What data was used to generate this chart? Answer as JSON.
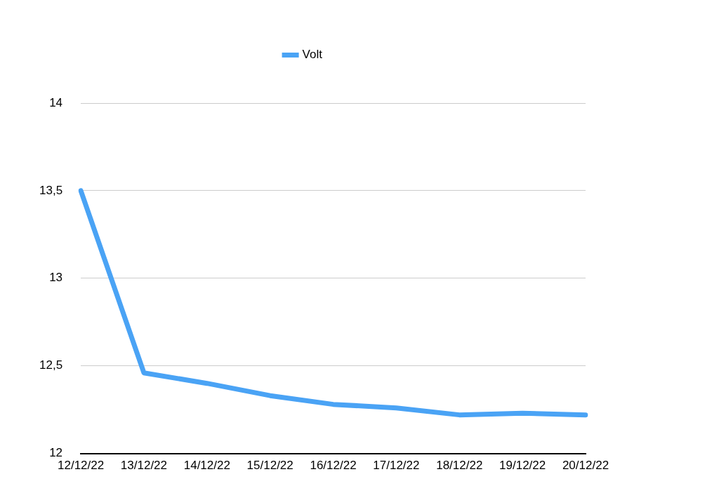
{
  "chart_data": {
    "type": "line",
    "categories": [
      "12/12/22",
      "13/12/22",
      "14/12/22",
      "15/12/22",
      "16/12/22",
      "17/12/22",
      "18/12/22",
      "19/12/22",
      "20/12/22"
    ],
    "series": [
      {
        "name": "Volt",
        "color": "#4aa3f5",
        "values": [
          13.5,
          12.46,
          12.4,
          12.33,
          12.28,
          12.26,
          12.22,
          12.23,
          12.22
        ]
      }
    ],
    "ylim": [
      12,
      14
    ],
    "yticks": [
      12,
      {
        "value": 12.5,
        "label": "12,5"
      },
      13,
      {
        "value": 13.5,
        "label": "13,5"
      },
      14
    ],
    "grid": "y",
    "legend": "top",
    "marker": "none",
    "line_style": "solid"
  }
}
